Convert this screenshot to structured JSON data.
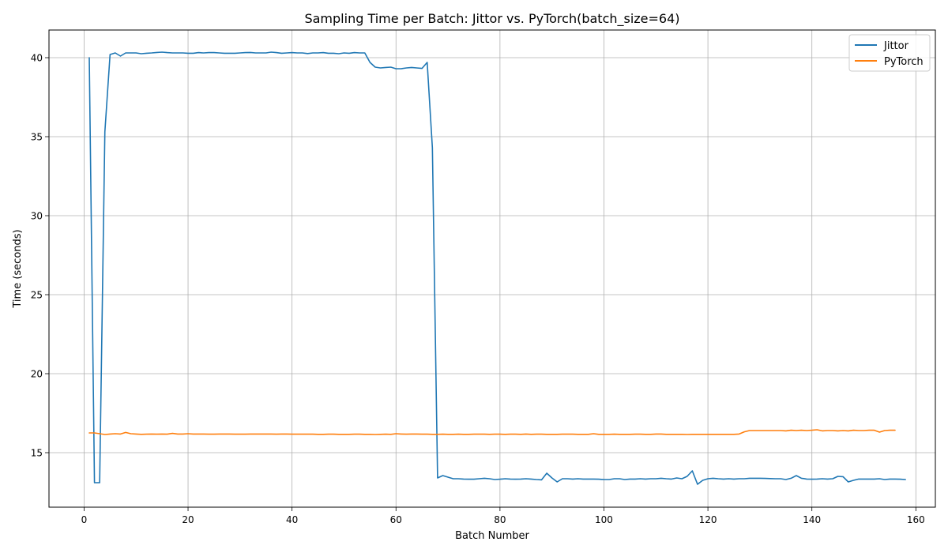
{
  "chart_data": {
    "type": "line",
    "title": "Sampling Time per Batch: Jittor vs. PyTorch(batch_size=64)",
    "xlabel": "Batch Number",
    "ylabel": "Time (seconds)",
    "xlim": [
      -6.75,
      163.75
    ],
    "ylim": [
      11.55,
      41.75
    ],
    "xticks": [
      0,
      20,
      40,
      60,
      80,
      100,
      120,
      140,
      160
    ],
    "yticks": [
      15,
      20,
      25,
      30,
      35,
      40
    ],
    "grid": true,
    "legend_position": "top-right",
    "series": [
      {
        "name": "Jittor",
        "color": "#1f77b4",
        "x_start": 1,
        "values": [
          40.0,
          13.1,
          13.1,
          35.3,
          40.2,
          40.3,
          40.1,
          40.3,
          40.3,
          40.3,
          40.25,
          40.28,
          40.3,
          40.33,
          40.35,
          40.32,
          40.3,
          40.3,
          40.3,
          40.28,
          40.28,
          40.32,
          40.3,
          40.32,
          40.32,
          40.3,
          40.28,
          40.28,
          40.28,
          40.3,
          40.32,
          40.33,
          40.3,
          40.3,
          40.3,
          40.35,
          40.32,
          40.28,
          40.3,
          40.32,
          40.3,
          40.3,
          40.26,
          40.3,
          40.3,
          40.32,
          40.28,
          40.28,
          40.25,
          40.3,
          40.28,
          40.32,
          40.3,
          40.3,
          39.7,
          39.4,
          39.35,
          39.38,
          39.4,
          39.3,
          39.3,
          39.35,
          39.38,
          39.35,
          39.32,
          39.7,
          34.3,
          13.4,
          13.55,
          13.45,
          13.35,
          13.35,
          13.33,
          13.32,
          13.32,
          13.35,
          13.38,
          13.35,
          13.3,
          13.32,
          13.35,
          13.33,
          13.32,
          13.33,
          13.35,
          13.33,
          13.3,
          13.28,
          13.7,
          13.4,
          13.15,
          13.35,
          13.35,
          13.33,
          13.35,
          13.33,
          13.33,
          13.33,
          13.32,
          13.3,
          13.3,
          13.35,
          13.35,
          13.3,
          13.33,
          13.33,
          13.35,
          13.33,
          13.35,
          13.35,
          13.38,
          13.35,
          13.33,
          13.4,
          13.35,
          13.5,
          13.85,
          13.0,
          13.25,
          13.35,
          13.38,
          13.35,
          13.33,
          13.35,
          13.33,
          13.35,
          13.35,
          13.38,
          13.38,
          13.38,
          13.37,
          13.36,
          13.35,
          13.35,
          13.3,
          13.38,
          13.55,
          13.38,
          13.33,
          13.32,
          13.33,
          13.35,
          13.33,
          13.35,
          13.5,
          13.48,
          13.15,
          13.25,
          13.33,
          13.33,
          13.33,
          13.33,
          13.35,
          13.3,
          13.33,
          13.33,
          13.32,
          13.3
        ]
      },
      {
        "name": "PyTorch",
        "color": "#ff7f0e",
        "x_start": 1,
        "values": [
          16.25,
          16.25,
          16.2,
          16.15,
          16.18,
          16.2,
          16.18,
          16.28,
          16.2,
          16.18,
          16.16,
          16.17,
          16.18,
          16.17,
          16.18,
          16.17,
          16.22,
          16.18,
          16.18,
          16.2,
          16.18,
          16.18,
          16.18,
          16.17,
          16.17,
          16.18,
          16.18,
          16.18,
          16.17,
          16.17,
          16.17,
          16.18,
          16.18,
          16.18,
          16.18,
          16.18,
          16.17,
          16.18,
          16.18,
          16.17,
          16.17,
          16.17,
          16.17,
          16.17,
          16.16,
          16.16,
          16.17,
          16.17,
          16.16,
          16.16,
          16.16,
          16.17,
          16.17,
          16.16,
          16.16,
          16.15,
          16.16,
          16.17,
          16.16,
          16.2,
          16.18,
          16.17,
          16.18,
          16.18,
          16.17,
          16.17,
          16.16,
          16.16,
          16.17,
          16.16,
          16.16,
          16.17,
          16.16,
          16.16,
          16.17,
          16.17,
          16.17,
          16.16,
          16.17,
          16.17,
          16.16,
          16.17,
          16.17,
          16.16,
          16.18,
          16.16,
          16.17,
          16.17,
          16.16,
          16.16,
          16.16,
          16.17,
          16.17,
          16.17,
          16.16,
          16.16,
          16.16,
          16.2,
          16.16,
          16.16,
          16.16,
          16.17,
          16.16,
          16.16,
          16.16,
          16.17,
          16.17,
          16.16,
          16.16,
          16.18,
          16.18,
          16.16,
          16.16,
          16.16,
          16.16,
          16.15,
          16.16,
          16.16,
          16.16,
          16.16,
          16.16,
          16.16,
          16.16,
          16.16,
          16.16,
          16.18,
          16.32,
          16.4,
          16.4,
          16.4,
          16.4,
          16.4,
          16.4,
          16.4,
          16.38,
          16.42,
          16.4,
          16.42,
          16.4,
          16.42,
          16.45,
          16.38,
          16.4,
          16.4,
          16.38,
          16.4,
          16.38,
          16.42,
          16.4,
          16.4,
          16.42,
          16.42,
          16.3,
          16.4,
          16.42,
          16.42
        ]
      }
    ]
  }
}
